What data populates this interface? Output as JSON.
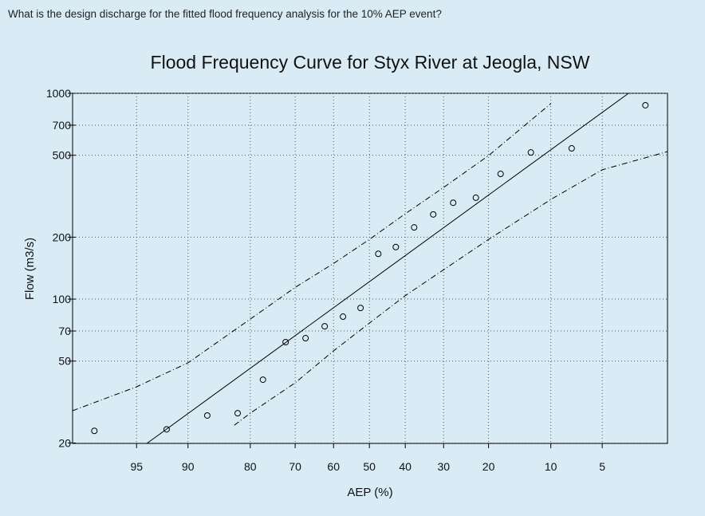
{
  "question": "What is the design discharge for the fitted flood frequency analysis for the 10% AEP event?",
  "chart_data": {
    "type": "scatter",
    "title": "Flood Frequency Curve for Styx River at Jeogla, NSW",
    "x_label": "AEP (%)",
    "y_label": "Flow (m3/s)",
    "x_scale": "normal-probability",
    "y_scale": "log",
    "grid": true,
    "xlim": [
      98.2,
      1.76
    ],
    "ylim": [
      19.9,
      1000
    ],
    "xticks": [
      95,
      90,
      80,
      70,
      60,
      50,
      40,
      30,
      20,
      10,
      5
    ],
    "yticks": [
      20,
      50,
      70,
      100,
      200,
      500,
      700,
      1000
    ],
    "series": [
      {
        "style": "markers",
        "color": "#000000",
        "x": [
          97.4,
          92.4,
          87.4,
          82.4,
          77.4,
          72.3,
          67.4,
          62.4,
          57.4,
          52.5,
          47.5,
          42.6,
          37.6,
          32.6,
          27.7,
          22.6,
          17.7,
          12.7,
          7.65,
          2.56
        ],
        "values": [
          22.9,
          23.3,
          27.2,
          27.9,
          40.6,
          61.8,
          64.6,
          73.8,
          82.2,
          90.6,
          166,
          179,
          223,
          258,
          294,
          311,
          406,
          516,
          540,
          875
        ]
      },
      {
        "style": "line",
        "color": "#000000",
        "x": [
          94.2,
          3.36
        ],
        "values": [
          19.9,
          1000
        ]
      },
      {
        "style": "dash-dot",
        "color": "#000000",
        "x": [
          98.2,
          95,
          90,
          80,
          70,
          60,
          50,
          40,
          30,
          20,
          10
        ],
        "values": [
          28.7,
          37.5,
          49.0,
          80.0,
          114,
          149,
          195,
          260,
          349,
          498,
          891
        ]
      },
      {
        "style": "dash-dot",
        "color": "#000000",
        "x": [
          83,
          80,
          70,
          60,
          50,
          40,
          30,
          20,
          10,
          5,
          1.76
        ],
        "values": [
          24.4,
          27.9,
          39.2,
          56.0,
          76.5,
          104,
          139,
          195,
          305,
          425,
          521
        ]
      }
    ]
  }
}
